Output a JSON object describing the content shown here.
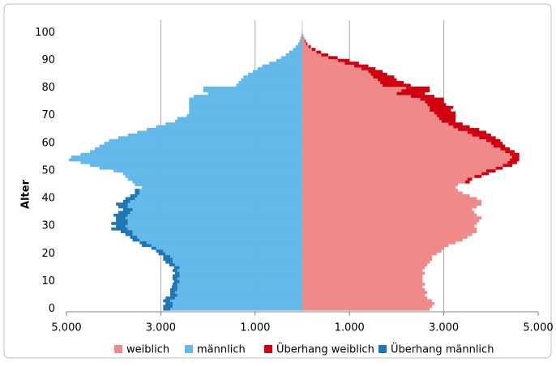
{
  "chart_data": {
    "type": "pyramid",
    "orientation": "horizontal",
    "y_axis_label": "Alter",
    "y": [
      0,
      1,
      2,
      3,
      4,
      5,
      6,
      7,
      8,
      9,
      10,
      11,
      12,
      13,
      14,
      15,
      16,
      17,
      18,
      19,
      20,
      21,
      22,
      23,
      24,
      25,
      26,
      27,
      28,
      29,
      30,
      31,
      32,
      33,
      34,
      35,
      36,
      37,
      38,
      39,
      40,
      41,
      42,
      43,
      44,
      45,
      46,
      47,
      48,
      49,
      50,
      51,
      52,
      53,
      54,
      55,
      56,
      57,
      58,
      59,
      60,
      61,
      62,
      63,
      64,
      65,
      66,
      67,
      68,
      69,
      70,
      71,
      72,
      73,
      74,
      75,
      76,
      77,
      78,
      79,
      80,
      81,
      82,
      83,
      84,
      85,
      86,
      87,
      88,
      89,
      90,
      91,
      92,
      93,
      94,
      95,
      96,
      97,
      98,
      99,
      100
    ],
    "series": [
      {
        "name": "weiblich",
        "color": "#f08a8a",
        "values": [
          2700,
          2750,
          2800,
          2750,
          2650,
          2600,
          2650,
          2600,
          2550,
          2600,
          2550,
          2550,
          2550,
          2600,
          2550,
          2600,
          2650,
          2700,
          2750,
          2750,
          2850,
          2950,
          3000,
          3100,
          3250,
          3400,
          3500,
          3600,
          3700,
          3700,
          3650,
          3700,
          3750,
          3800,
          3700,
          3650,
          3600,
          3700,
          3800,
          3800,
          3700,
          3550,
          3400,
          3300,
          3250,
          3300,
          3450,
          3500,
          3650,
          3800,
          3900,
          4100,
          4250,
          4350,
          4400,
          4450,
          4400,
          4300,
          4200,
          4050,
          4000,
          3900,
          3750,
          3600,
          3500,
          3300,
          3200,
          3100,
          2950,
          2900,
          2850,
          2800,
          2700,
          2700,
          2650,
          2600,
          2500,
          2300,
          2000,
          2100,
          2200,
          1700,
          1650,
          1600,
          1500,
          1450,
          1400,
          1250,
          1100,
          900,
          750,
          550,
          400,
          300,
          200,
          130,
          80,
          50,
          30,
          15,
          5
        ]
      },
      {
        "name": "männlich",
        "color": "#63b9e9",
        "values": [
          -2800,
          -2750,
          -2750,
          -2800,
          -2700,
          -2650,
          -2700,
          -2650,
          -2650,
          -2650,
          -2600,
          -2650,
          -2600,
          -2600,
          -2650,
          -2600,
          -2700,
          -2750,
          -2750,
          -2800,
          -2900,
          -2950,
          -3100,
          -3200,
          -3300,
          -3450,
          -3500,
          -3600,
          -3600,
          -3700,
          -3750,
          -3700,
          -3700,
          -3750,
          -3700,
          -3650,
          -3600,
          -3700,
          -3700,
          -3650,
          -3550,
          -3500,
          -3450,
          -3450,
          -3400,
          -3550,
          -3600,
          -3700,
          -3750,
          -3800,
          -4000,
          -4300,
          -4500,
          -4700,
          -4950,
          -4900,
          -4700,
          -4500,
          -4400,
          -4300,
          -4200,
          -4100,
          -3900,
          -3700,
          -3500,
          -3300,
          -3100,
          -2900,
          -2700,
          -2650,
          -2450,
          -2400,
          -2400,
          -2400,
          -2400,
          -2400,
          -2400,
          -2300,
          -2000,
          -2100,
          -2100,
          -1400,
          -1350,
          -1300,
          -1250,
          -1150,
          -1050,
          -950,
          -850,
          -700,
          -550,
          -450,
          -350,
          -280,
          -200,
          -140,
          -90,
          -60,
          -40,
          -20,
          -10
        ]
      },
      {
        "name": "Überhang weiblich",
        "color": "#d0000f",
        "values": [
          0,
          0,
          0,
          0,
          0,
          0,
          0,
          0,
          0,
          0,
          0,
          0,
          0,
          0,
          0,
          0,
          0,
          0,
          0,
          0,
          0,
          0,
          0,
          0,
          0,
          0,
          0,
          0,
          0,
          0,
          0,
          0,
          0,
          0,
          0,
          0,
          0,
          0,
          0,
          0,
          0,
          0,
          0,
          0,
          0,
          0,
          100,
          100,
          150,
          150,
          200,
          150,
          200,
          200,
          200,
          150,
          200,
          200,
          200,
          250,
          250,
          300,
          350,
          400,
          400,
          450,
          350,
          300,
          300,
          350,
          400,
          450,
          450,
          500,
          400,
          400,
          500,
          500,
          600,
          600,
          500,
          600,
          500,
          400,
          450,
          350,
          300,
          300,
          300,
          300,
          250,
          200,
          150,
          100,
          80,
          50,
          30,
          20,
          10,
          5,
          0
        ]
      },
      {
        "name": "Überhang männlich",
        "color": "#1f77b4",
        "values": [
          -150,
          -200,
          -150,
          -150,
          -200,
          -150,
          -100,
          -150,
          -120,
          -100,
          -120,
          -100,
          -150,
          -100,
          -100,
          -120,
          -120,
          -150,
          -200,
          -150,
          -150,
          -150,
          -100,
          -200,
          -150,
          -150,
          -150,
          -150,
          -250,
          -350,
          -200,
          -350,
          -250,
          -200,
          -300,
          -250,
          -200,
          -200,
          -250,
          -150,
          -200,
          -150,
          -100,
          -100,
          0,
          0,
          0,
          0,
          0,
          0,
          0,
          0,
          0,
          0,
          0,
          0,
          0,
          0,
          0,
          0,
          0,
          0,
          0,
          0,
          0,
          0,
          0,
          0,
          0,
          0,
          0,
          0,
          0,
          0,
          0,
          0,
          0,
          0,
          0,
          0,
          0,
          0,
          0,
          0,
          0,
          0,
          0,
          0,
          0,
          0,
          0,
          0,
          0,
          0,
          0,
          0,
          0,
          0,
          0,
          0,
          0
        ]
      }
    ],
    "xlim": [
      -5000,
      5000
    ],
    "xticks": [
      {
        "value": -5000,
        "label": "5.000"
      },
      {
        "value": -3000,
        "label": "3.000"
      },
      {
        "value": -1000,
        "label": "1.000"
      },
      {
        "value": 1000,
        "label": "1.000"
      },
      {
        "value": 3000,
        "label": "3.000"
      },
      {
        "value": 5000,
        "label": "5.000"
      }
    ],
    "ylim": [
      -1,
      104.5
    ],
    "yticks": [
      0,
      10,
      20,
      30,
      40,
      50,
      60,
      70,
      80,
      90,
      100
    ],
    "grid": true,
    "legend": "bottom"
  }
}
